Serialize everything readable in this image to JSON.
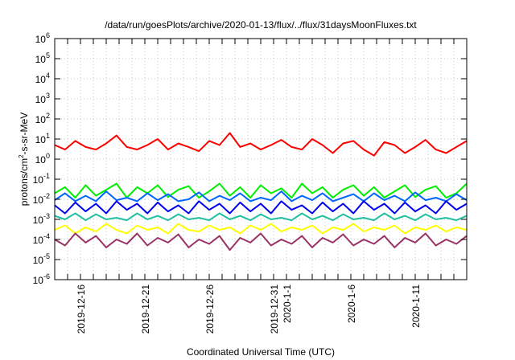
{
  "chart_data": {
    "type": "line",
    "title": "/data/run/goesPlots/archive/2020-01-13/flux/../flux/31daysMoonFluxes.txt",
    "xlabel": "Coordinated Universal Time (UTC)",
    "ylabel_base": "protons/cm",
    "ylabel_sup": "2",
    "ylabel_tail": "-s-sr-MeV",
    "yscale": "log",
    "ylim": [
      1e-06,
      1000000.0
    ],
    "y_ticks": [
      {
        "base": "10",
        "exp": "-6",
        "value": -6
      },
      {
        "base": "10",
        "exp": "-5",
        "value": -5
      },
      {
        "base": "10",
        "exp": "-4",
        "value": -4
      },
      {
        "base": "10",
        "exp": "-3",
        "value": -3
      },
      {
        "base": "10",
        "exp": "-2",
        "value": -2
      },
      {
        "base": "10",
        "exp": "-1",
        "value": -1
      },
      {
        "base": "10",
        "exp": "0",
        "value": 0
      },
      {
        "base": "10",
        "exp": "1",
        "value": 1
      },
      {
        "base": "10",
        "exp": "2",
        "value": 2
      },
      {
        "base": "10",
        "exp": "3",
        "value": 3
      },
      {
        "base": "10",
        "exp": "4",
        "value": 4
      },
      {
        "base": "10",
        "exp": "5",
        "value": 5
      },
      {
        "base": "10",
        "exp": "6",
        "value": 6
      }
    ],
    "x_range_days_since_2019_12_14": [
      0,
      32
    ],
    "x_ticks": [
      {
        "label": "2019-12-16",
        "day": 2
      },
      {
        "label": "2019-12-21",
        "day": 7
      },
      {
        "label": "2019-12-26",
        "day": 12
      },
      {
        "label": "2019-12-31",
        "day": 17
      },
      {
        "label": "2020-1-1",
        "day": 18
      },
      {
        "label": "2020-1-6",
        "day": 23
      },
      {
        "label": "2020-1-11",
        "day": 28
      }
    ],
    "grid": true,
    "legend": "none",
    "x_step_days": 0.8,
    "series": [
      {
        "name": "red",
        "color": "#ff0000",
        "values": [
          5,
          3,
          8,
          4,
          3,
          6,
          15,
          4,
          3,
          5,
          10,
          3,
          6,
          4,
          2.5,
          8,
          5,
          20,
          4,
          6,
          3,
          5,
          9,
          4,
          3,
          10,
          5,
          2,
          6,
          8,
          3,
          1.5,
          7,
          5,
          2,
          4,
          9,
          3,
          2,
          4,
          8
        ]
      },
      {
        "name": "green",
        "color": "#00ee00",
        "values": [
          0.02,
          0.04,
          0.012,
          0.05,
          0.015,
          0.03,
          0.06,
          0.012,
          0.04,
          0.02,
          0.05,
          0.013,
          0.03,
          0.045,
          0.012,
          0.025,
          0.06,
          0.015,
          0.04,
          0.012,
          0.05,
          0.02,
          0.035,
          0.012,
          0.06,
          0.02,
          0.04,
          0.012,
          0.03,
          0.05,
          0.015,
          0.04,
          0.012,
          0.025,
          0.05,
          0.013,
          0.03,
          0.045,
          0.012,
          0.02,
          0.06
        ]
      },
      {
        "name": "light-blue",
        "color": "#0066ff",
        "values": [
          0.009,
          0.02,
          0.008,
          0.015,
          0.008,
          0.025,
          0.009,
          0.012,
          0.008,
          0.02,
          0.009,
          0.018,
          0.008,
          0.01,
          0.022,
          0.008,
          0.015,
          0.009,
          0.02,
          0.008,
          0.012,
          0.009,
          0.025,
          0.008,
          0.015,
          0.009,
          0.02,
          0.008,
          0.012,
          0.018,
          0.008,
          0.02,
          0.009,
          0.015,
          0.008,
          0.022,
          0.009,
          0.012,
          0.008,
          0.018,
          0.009
        ]
      },
      {
        "name": "blue",
        "color": "#0000ee",
        "values": [
          0.005,
          0.002,
          0.007,
          0.0025,
          0.006,
          0.002,
          0.008,
          0.003,
          0.006,
          0.002,
          0.007,
          0.0025,
          0.005,
          0.002,
          0.008,
          0.003,
          0.006,
          0.002,
          0.007,
          0.0025,
          0.006,
          0.002,
          0.008,
          0.003,
          0.005,
          0.002,
          0.007,
          0.0025,
          0.006,
          0.002,
          0.008,
          0.003,
          0.006,
          0.002,
          0.007,
          0.0025,
          0.005,
          0.002,
          0.008,
          0.003,
          0.006
        ]
      },
      {
        "name": "teal",
        "color": "#20c0a0",
        "values": [
          0.0015,
          0.001,
          0.002,
          0.0009,
          0.0018,
          0.001,
          0.0012,
          0.0009,
          0.002,
          0.001,
          0.0015,
          0.0009,
          0.0018,
          0.001,
          0.0012,
          0.0009,
          0.002,
          0.001,
          0.0015,
          0.0009,
          0.0018,
          0.001,
          0.0012,
          0.0009,
          0.002,
          0.001,
          0.0015,
          0.0009,
          0.0018,
          0.001,
          0.0012,
          0.0009,
          0.002,
          0.001,
          0.0015,
          0.0009,
          0.0018,
          0.001,
          0.0012,
          0.0009,
          0.0015
        ]
      },
      {
        "name": "yellow",
        "color": "#ffff00",
        "values": [
          0.0003,
          0.0005,
          0.0002,
          0.0004,
          0.00025,
          0.0006,
          0.0003,
          0.0002,
          0.0005,
          0.0003,
          0.0004,
          0.0002,
          0.0006,
          0.0003,
          0.00025,
          0.0005,
          0.0003,
          0.0004,
          0.0002,
          0.0005,
          0.0003,
          0.0006,
          0.00025,
          0.0004,
          0.0003,
          0.0005,
          0.0002,
          0.0004,
          0.0003,
          0.0006,
          0.00025,
          0.0004,
          0.0003,
          0.0005,
          0.0002,
          0.0004,
          0.0003,
          0.0005,
          0.00025,
          0.0004,
          0.0003
        ]
      },
      {
        "name": "purple",
        "color": "#993366",
        "values": [
          0.0001,
          5e-05,
          0.0002,
          7e-05,
          0.00015,
          4e-05,
          0.0001,
          6e-05,
          0.0002,
          5e-05,
          0.00012,
          7e-05,
          0.00018,
          4e-05,
          0.0001,
          6e-05,
          0.00015,
          3e-05,
          0.00012,
          7e-05,
          0.0002,
          5e-05,
          0.0001,
          6e-05,
          0.00015,
          4e-05,
          0.00012,
          7e-05,
          0.00018,
          5e-05,
          0.0001,
          6e-05,
          0.00015,
          4e-05,
          0.00012,
          7e-05,
          0.0002,
          5e-05,
          0.0001,
          6e-05,
          0.00015
        ]
      }
    ]
  }
}
